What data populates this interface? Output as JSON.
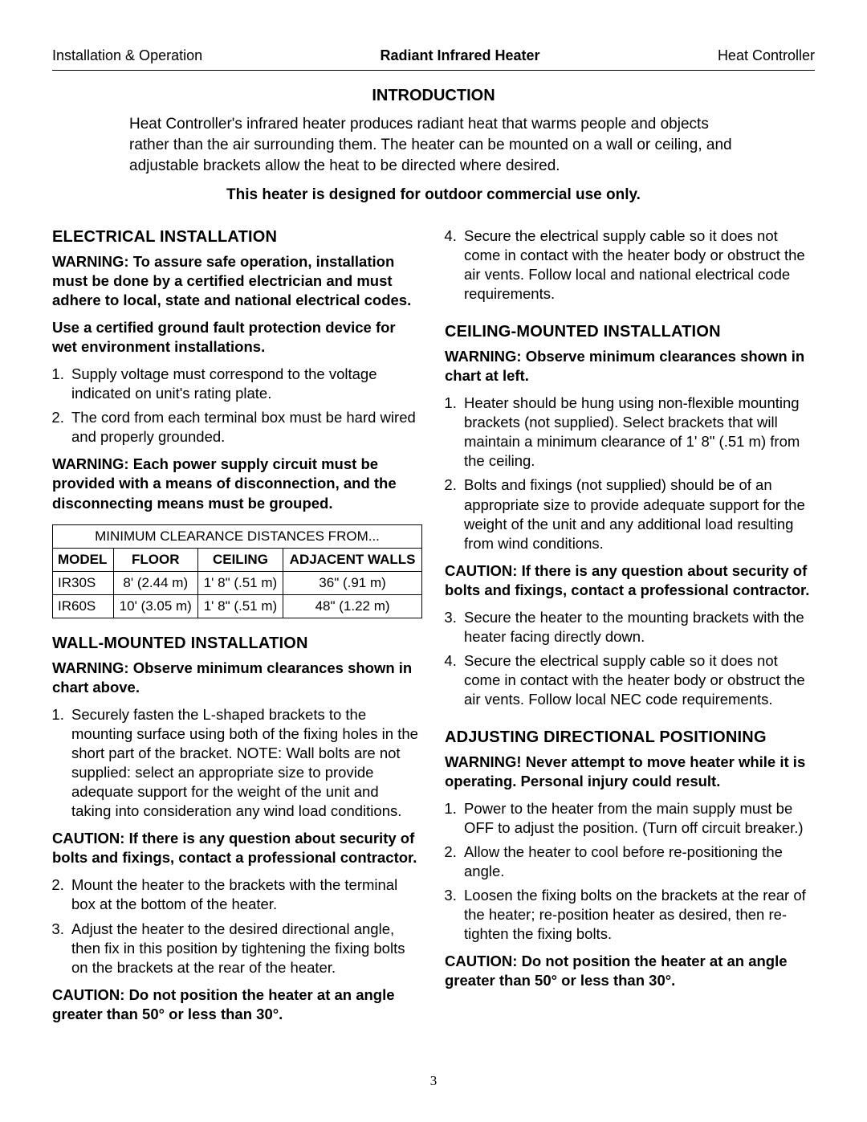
{
  "header": {
    "left": "Installation & Operation",
    "center": "Radiant Infrared Heater",
    "right": "Heat Controller"
  },
  "intro": {
    "title": "INTRODUCTION",
    "body": "Heat Controller's infrared heater produces radiant heat that warms people and objects rather than the air surrounding them. The heater can be mounted on a wall or ceiling, and adjustable brackets allow the heat to be directed where desired.",
    "sub": "This heater is designed for outdoor commercial use only."
  },
  "left_col": {
    "elec_head": "ELECTRICAL INSTALLATION",
    "elec_warn1": "WARNING: To assure safe operation, installation must be done by a certified electrician and must adhere to local, state and national electrical codes.",
    "elec_warn2": "Use a certified ground fault protection device for wet environment installations.",
    "elec_li1": "Supply voltage must correspond to the voltage indicated on unit's rating plate.",
    "elec_li2": "The cord from each terminal box must be hard wired and properly grounded.",
    "elec_warn3": "WARNING: Each power supply circuit must be provided with a means of disconnection, and the disconnecting means must be grouped.",
    "table": {
      "title": "MINIMUM CLEARANCE DISTANCES FROM...",
      "columns": [
        "MODEL",
        "FLOOR",
        "CEILING",
        "ADJACENT WALLS"
      ],
      "rows": [
        [
          "IR30S",
          "8' (2.44 m)",
          "1' 8\" (.51 m)",
          "36\" (.91 m)"
        ],
        [
          "IR60S",
          "10' (3.05 m)",
          "1' 8\" (.51 m)",
          "48\" (1.22 m)"
        ]
      ]
    },
    "wall_head": "WALL-MOUNTED INSTALLATION",
    "wall_warn1": "WARNING: Observe minimum clearances shown in chart above.",
    "wall_li1": "Securely fasten the L-shaped brackets to the mounting surface using both of the fixing holes in the short part of the bracket. NOTE: Wall bolts are not supplied: select an appropriate size to provide adequate support for the weight of the unit and taking into consideration any wind load conditions.",
    "wall_caution1": "CAUTION: If there is any question about security of bolts and fixings, contact a professional contractor.",
    "wall_li2": "Mount the heater to the brackets with the terminal box at the bottom of the heater.",
    "wall_li3": "Adjust the heater to the desired directional angle, then fix in this position by tightening the fixing bolts on the brackets at the rear of the heater.",
    "wall_caution2": "CAUTION: Do not position the heater at an angle greater than 50° or less than 30°."
  },
  "right_col": {
    "cont_li4": "Secure the electrical supply cable so it does not come in contact with the heater body or obstruct the air vents. Follow local and national electrical code requirements.",
    "ceil_head": "CEILING-MOUNTED INSTALLATION",
    "ceil_warn1": "WARNING: Observe minimum clearances shown in chart at left.",
    "ceil_li1": "Heater should be hung using non-flexible mounting brackets (not supplied). Select brackets that will maintain a minimum clearance of 1' 8\" (.51 m) from the ceiling.",
    "ceil_li2": "Bolts and fixings (not supplied) should be of an appropriate size to provide adequate support for the weight of the unit and any additional load resulting from wind conditions.",
    "ceil_caution1": "CAUTION: If there is any question about security of bolts and fixings, contact a professional contractor.",
    "ceil_li3": "Secure the heater to the mounting brackets with the heater facing directly down.",
    "ceil_li4": "Secure the electrical supply cable so it does not come in contact with the heater body or obstruct the air vents. Follow local NEC code requirements.",
    "adj_head": "ADJUSTING DIRECTIONAL POSITIONING",
    "adj_warn1": "WARNING! Never attempt to move heater while it is operating. Personal injury could result.",
    "adj_li1": "Power to the heater from the main supply must be OFF to adjust the position. (Turn off circuit breaker.)",
    "adj_li2": "Allow the heater to cool before re-positioning the angle.",
    "adj_li3": "Loosen the fixing bolts on the brackets at the rear of the heater; re-position heater as desired, then re-tighten the fixing bolts.",
    "adj_caution1": "CAUTION: Do not position the heater at an angle greater than 50° or less than 30°."
  },
  "page_number": "3"
}
